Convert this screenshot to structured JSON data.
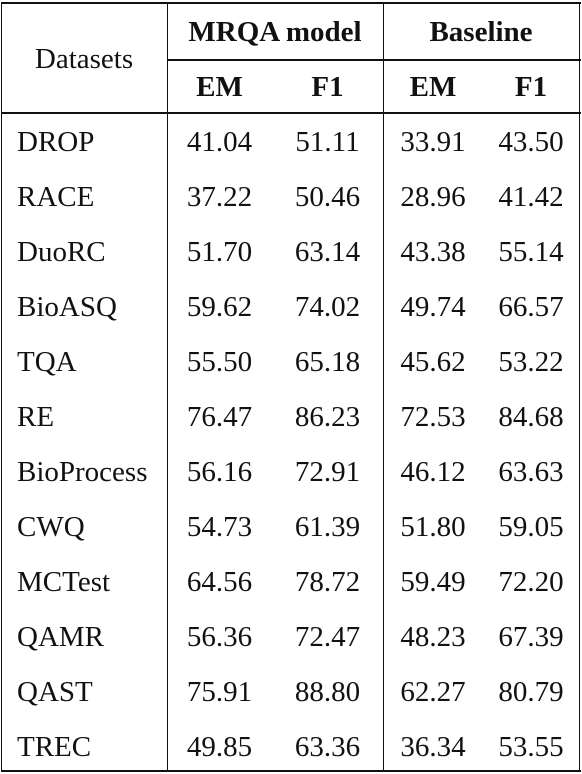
{
  "table": {
    "row_header_label": "Datasets",
    "groups": [
      {
        "label": "MRQA model",
        "columns": [
          "EM",
          "F1"
        ]
      },
      {
        "label": "Baseline",
        "columns": [
          "EM",
          "F1"
        ]
      }
    ],
    "rows": [
      {
        "dataset": "DROP",
        "values": [
          "41.04",
          "51.11",
          "33.91",
          "43.50"
        ]
      },
      {
        "dataset": "RACE",
        "values": [
          "37.22",
          "50.46",
          "28.96",
          "41.42"
        ]
      },
      {
        "dataset": "DuoRC",
        "values": [
          "51.70",
          "63.14",
          "43.38",
          "55.14"
        ]
      },
      {
        "dataset": "BioASQ",
        "values": [
          "59.62",
          "74.02",
          "49.74",
          "66.57"
        ]
      },
      {
        "dataset": "TQA",
        "values": [
          "55.50",
          "65.18",
          "45.62",
          "53.22"
        ]
      },
      {
        "dataset": "RE",
        "values": [
          "76.47",
          "86.23",
          "72.53",
          "84.68"
        ]
      },
      {
        "dataset": "BioProcess",
        "values": [
          "56.16",
          "72.91",
          "46.12",
          "63.63"
        ]
      },
      {
        "dataset": "CWQ",
        "values": [
          "54.73",
          "61.39",
          "51.80",
          "59.05"
        ]
      },
      {
        "dataset": "MCTest",
        "values": [
          "64.56",
          "78.72",
          "59.49",
          "72.20"
        ]
      },
      {
        "dataset": "QAMR",
        "values": [
          "56.36",
          "72.47",
          "48.23",
          "67.39"
        ]
      },
      {
        "dataset": "QAST",
        "values": [
          "75.91",
          "88.80",
          "62.27",
          "80.79"
        ]
      },
      {
        "dataset": "TREC",
        "values": [
          "49.85",
          "63.36",
          "36.34",
          "53.55"
        ]
      }
    ]
  }
}
